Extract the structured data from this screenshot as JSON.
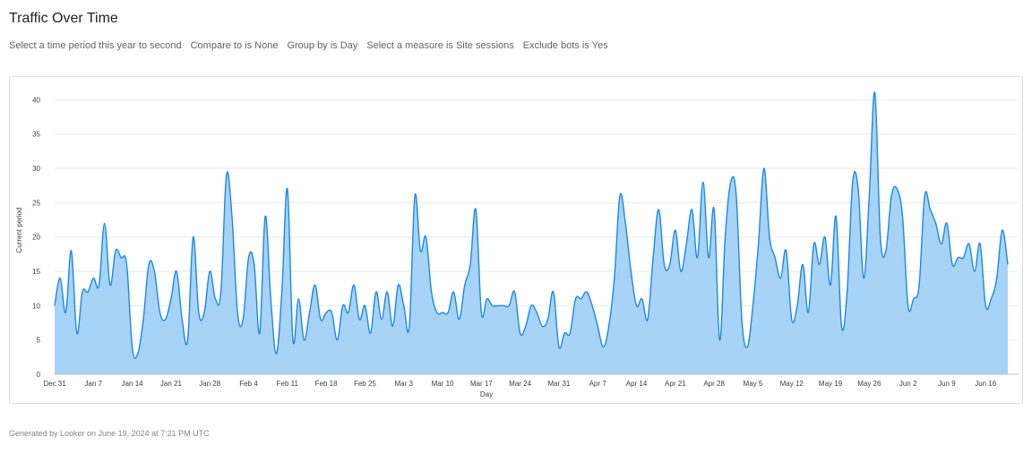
{
  "page": {
    "title": "Traffic Over Time",
    "filters": [
      "Select a time period this year to second",
      "Compare to is None",
      "Group by is Day",
      "Select a measure is Site sessions",
      "Exclude bots is Yes"
    ],
    "footer": "Generated by Looker on June 19, 2024 at 7:21 PM UTC"
  },
  "chart_data": {
    "type": "area",
    "title": "",
    "xlabel": "Day",
    "ylabel": "Current period",
    "ylim": [
      0,
      42
    ],
    "y_ticks": [
      0,
      5,
      10,
      15,
      20,
      25,
      30,
      35,
      40
    ],
    "grid": true,
    "legend": "none",
    "colors": {
      "line": "#1e88e5",
      "fill": "#a6d3f6",
      "grid": "#e8eaed"
    },
    "x_tick_labels": [
      "Dec 31",
      "Jan 7",
      "Jan 14",
      "Jan 21",
      "Jan 28",
      "Feb 4",
      "Feb 11",
      "Feb 18",
      "Feb 25",
      "Mar 3",
      "Mar 10",
      "Mar 17",
      "Mar 24",
      "Mar 31",
      "Apr 7",
      "Apr 14",
      "Apr 21",
      "Apr 28",
      "May 5",
      "May 12",
      "May 19",
      "May 26",
      "Jun 2",
      "Jun 9",
      "Jun 16"
    ],
    "x_start": "Dec 31",
    "x_end": "Jun 17",
    "series": [
      {
        "values": [
          10,
          14,
          9,
          18,
          6,
          12,
          12,
          14,
          13,
          22,
          13,
          18,
          17,
          16,
          4,
          3,
          8,
          16,
          15,
          9,
          8,
          11,
          15,
          8,
          5,
          20,
          9,
          9,
          15,
          11,
          12,
          29,
          23,
          9,
          8,
          17,
          16,
          6,
          23,
          11,
          3,
          12,
          27,
          5,
          11,
          5,
          9,
          13,
          8,
          9,
          9,
          5,
          10,
          9,
          13,
          8,
          10,
          6,
          12,
          8,
          12,
          7,
          13,
          10,
          7,
          26,
          18,
          20,
          12,
          9,
          9,
          9,
          12,
          8,
          13,
          16,
          24,
          9,
          11,
          10,
          10,
          10,
          10,
          12,
          6,
          7,
          10,
          9,
          7,
          8,
          12,
          4,
          6,
          6,
          11,
          11,
          12,
          10,
          7,
          4,
          7,
          14,
          26,
          22,
          15,
          10,
          11,
          8,
          17,
          24,
          16,
          16,
          21,
          15,
          19,
          24,
          17,
          28,
          17,
          24,
          5,
          20,
          28,
          26,
          8,
          4,
          10,
          19,
          30,
          20,
          17,
          14,
          18,
          8,
          10,
          16,
          9,
          19,
          16,
          20,
          13,
          23,
          7,
          12,
          28,
          27,
          14,
          26,
          41,
          20,
          18,
          26,
          27,
          23,
          10,
          11,
          13,
          26,
          24,
          22,
          19,
          22,
          16,
          17,
          17,
          19,
          15,
          19,
          10,
          11,
          14,
          21,
          16
        ]
      }
    ]
  }
}
